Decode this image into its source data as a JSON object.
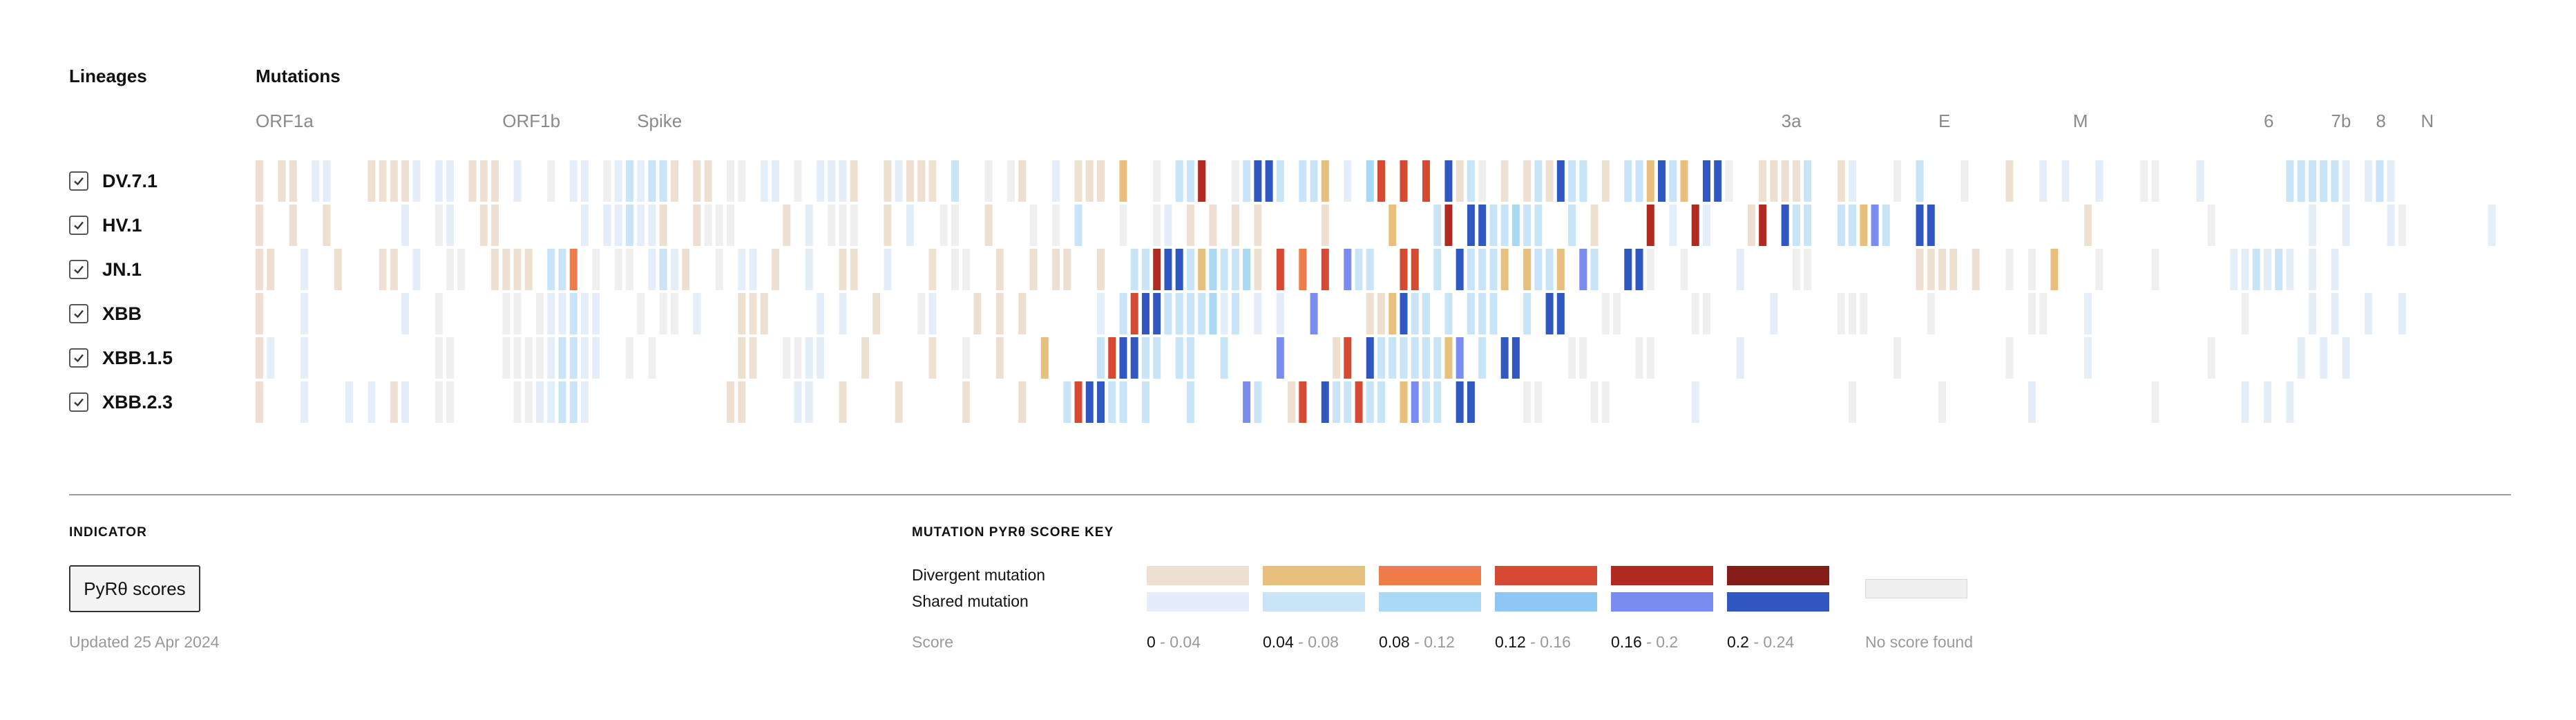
{
  "headers": {
    "lineages": "Lineages",
    "mutations": "Mutations"
  },
  "genes": [
    {
      "name": "ORF1a",
      "cols": [
        0,
        21
      ]
    },
    {
      "name": "ORF1b",
      "cols": [
        22,
        33
      ]
    },
    {
      "name": "Spike",
      "cols": [
        34,
        135
      ]
    },
    {
      "name": "3a",
      "cols": [
        136,
        149
      ]
    },
    {
      "name": "E",
      "cols": [
        150,
        161
      ]
    },
    {
      "name": "M",
      "cols": [
        162,
        178
      ]
    },
    {
      "name": "6",
      "cols": [
        179,
        184
      ]
    },
    {
      "name": "7b",
      "cols": [
        185,
        188
      ]
    },
    {
      "name": "8",
      "cols": [
        189,
        192
      ]
    },
    {
      "name": "N",
      "cols": [
        193,
        200
      ]
    }
  ],
  "lineages": [
    {
      "name": "DV.7.1",
      "checked": true
    },
    {
      "name": "HV.1",
      "checked": true
    },
    {
      "name": "JN.1",
      "checked": true
    },
    {
      "name": "XBB",
      "checked": true
    },
    {
      "name": "XBB.1.5",
      "checked": true
    },
    {
      "name": "XBB.2.3",
      "checked": true
    }
  ],
  "indicator": {
    "label": "INDICATOR",
    "button": "PyRθ scores",
    "updated": "Updated 25 Apr 2024"
  },
  "key": {
    "title": "MUTATION PYRθ SCORE KEY",
    "divergent_label": "Divergent mutation",
    "shared_label": "Shared mutation",
    "score_label": "Score",
    "bins": [
      {
        "low": "0",
        "high": "- 0.04"
      },
      {
        "low": "0.04",
        "high": "- 0.08"
      },
      {
        "low": "0.08",
        "high": "- 0.12"
      },
      {
        "low": "0.12",
        "high": "- 0.16"
      },
      {
        "low": "0.16",
        "high": "- 0.2"
      },
      {
        "low": "0.2",
        "high": "- 0.24"
      }
    ],
    "no_score_label": "No score found",
    "divergent_colors": [
      "#ede0d0",
      "#e8c07e",
      "#ee7b48",
      "#d64a33",
      "#b02a22",
      "#861c18"
    ],
    "shared_colors": [
      "#e4eef8",
      "#c8e4f6",
      "#a9d9f4",
      "#8ec6f4",
      "#7a8cf0",
      "#3157c0"
    ],
    "no_score_color": "#efefef"
  },
  "chart_data": {
    "type": "heatmap",
    "rows": [
      "DV.7.1",
      "HV.1",
      "JN.1",
      "XBB",
      "XBB.1.5",
      "XBB.2.3"
    ],
    "column_count": 201,
    "legend": "D = divergent mutation (bin 0-5), S = shared mutation (bin 0-5), N = no score found, . = no mutation",
    "matrix": [
      "D0 . D0 D0 . S0 S0 . . . D0 D0 D0 D0 S0 . S0 S0 . D0 D0 D0 . S0 . . N . S0 S0 . N S0 S1 S0 S1 S1 D0 . D0 D0 . N N . S0 S0 . N . S0 S0 S0 D0 . . D0 S0 D0 D0 D0 . S1 . . N . N D0 . . S0 . D0 D0 D0 . D1 . . N . S1 S1 D4 . . N S1 S5 S5 S1 . S1 S1 D1 . S0 . S2 D3 . D3 . D3 . S5 D0 S1 N . D0 . D0 S1 D0 S5 S1 S1 . D0 . S1 S1 D1 S5 S1 D1 . S5 S5 N . . D0 D0 D0 D0 S1 . . D0 S0 . . . N . S1 . . . N . . . D0 . . S0 . S0 . . S0 . . . N N . . . S0 . . . . . . . S1 S1 S1 S1 S1 S0 . S0 S1 S0",
      "D0 . . D0 . . D0 . . . . . . S0 . . N S0 . . D0 D0 . . . . . . . S0 . S0 S0 S1 S0 S0 D0 . . D0 N N N . . . . D0 . S0 . N N N . . D0 . S0 . . N N . . D0 . . . N . N . S1 . . . N . . N S0 . D0 . D0 . D0 . D0 . . . . . D0 . . . . . D1 . . . S1 D4 . S5 S5 S1 S1 S2 S1 S1 . . S1 . D0 . . . . D4 . S0 . D4 S0 . . . D0 D4 . S5 S1 S1 . . S1 S1 D1 S4 S1 . . S5 S5 . . . . . . . . . . . . . D0 . . . . . . . . . . N . . . . . . . . S0 . . S0 . . . S0 N . . . . . . . S0 . . . N . . . S1 S1 . S1 . . S0 . S0",
      "D0 D0 . . S0 . . D0 . . . D0 D0 . S0 . . N N . . D0 D0 D0 D0 . S1 S1 D2 . N . N N . S0 S1 S0 D0 . . N . S0 S0 . D0 . . S0 . . D0 D0 . . S0 . . . D0 . N N . . D0 . . D0 . D0 D0 . . D0 . . S1 S1 D4 S5 S5 S1 D1 S2 S1 S1 S2 D0 . D3 . D2 . D3 . S4 S1 S1 . . D3 D3 . S1 . S5 S1 S1 S1 D1 . D1 S1 S1 D1 . S4 S1 . . S5 S5 N . . N . . . . S0 . . . . N N . . . . . . . . . D0 D0 D0 D0 . D0 . . N . N . D1 . . . N . . . . N . . . . . . S0 S0 S1 S0 S1 S0 . S0 . S0",
      "D0 . . . S0 . . . . . . . . S0 . . N . . . . . N N . N S0 S0 S1 S0 S0 . . . N . N N . S0 . . . D0 D0 D0 . . . . S0 . S0 . . D0 . . . N S0 . . . D0 . D0 . D0 . . . . . . S0 . S1 D3 S5 S5 S1 S1 S1 S1 S2 S0 S1 . S0 . S0 . . S4 . . . . D0 D0 D1 S5 S1 S1 . S1 . S1 S1 S1 . . S1 . S5 S5 . . . N N . . . . . . N N . . . . . S0 . . . . . N N N . . . . . N . . . . . . . . N N . . . S0 . . . . . . . . . . . . . N . . . . . S0 . S0 . . S0 . . S0",
      "D0 S0 . . S0 . . . . . . . . . . . N N . . . . N N N N S0 S1 S1 S0 S0 . . N . N . . . . . . . D0 D0 . . N N S0 S0 . . . D0 . . . . . D0 . . N . . D0 . . . D1 . . . . S1 D3 S5 S5 S1 S1 . S1 S1 . . S1 . . . . S4 . . . . D0 D3 . S5 S1 S1 S1 S1 S1 S1 D1 S4 . S1 . S5 S5 . . . . N N . . . . N N . . . . . . . S0 . . . . . . . . . . . . . N . . . . . . . . . N . . . . . . S0 . . . . . . . . . . N . . . . . . . S0 . S0 . S0",
      "D0 . . . S0 . . . S0 . S0 . D0 S0 . . N N . . . . . N N S0 S0 S1 S1 S0 . . . . . . . . . . . . D0 D0 . . . . S0 S0 . . D0 . . . . D0 . . . . . D0 . . . . D0 . . . S1 D3 S5 S5 S1 S1 . S1 . . . S1 . . . . S4 S1 . . D0 D3 . S5 S1 S1 D3 S1 S1 . D1 S4 S1 S1 . S5 S5 . . . . N N . . . . N N . . . . . . . S0 . . . . . . . . . . . . . N . . . . . . . N . . . . . . . S0 . . . . . . . . . . N . . . . . . . S0 . S0 . S0"
    ]
  }
}
